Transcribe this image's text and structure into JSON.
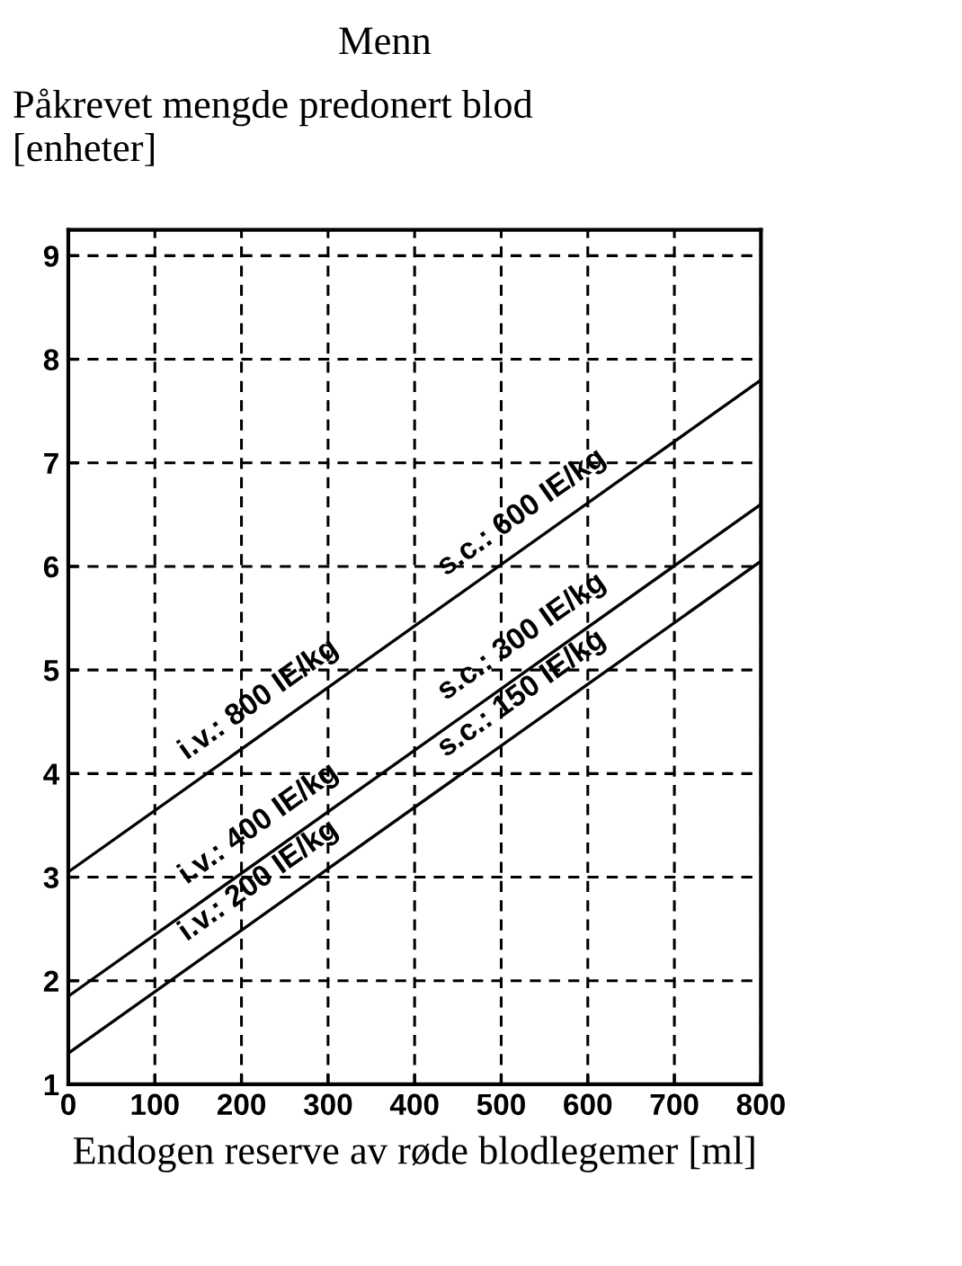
{
  "chart_data": {
    "type": "line",
    "title": "Menn",
    "ylabel": "Påkrevet mengde predonert blod [enheter]",
    "xlabel": "Endogen reserve av røde blodlegemer [ml]",
    "x": [
      0,
      800
    ],
    "series": [
      {
        "color": "#000000",
        "values": [
          3.05,
          7.8
        ]
      },
      {
        "color": "#000000",
        "values": [
          1.85,
          6.6
        ]
      },
      {
        "color": "#000000",
        "values": [
          1.3,
          6.05
        ]
      }
    ],
    "annotations": [
      "i.v.: 800 IE/kg",
      "s.c.: 600 IE/kg",
      "i.v.: 400 IE/kg",
      "s.c.: 300 IE/kg",
      "i.v.: 200 IE/kg",
      "s.c.: 150 IE/kg"
    ],
    "xlim": [
      0,
      800
    ],
    "xticks": [
      0,
      100,
      200,
      300,
      400,
      500,
      600,
      700,
      800
    ],
    "ylim": [
      1,
      9.25
    ],
    "yticks": [
      1,
      2,
      3,
      4,
      5,
      6,
      7,
      8,
      9
    ],
    "grid": true,
    "line_style": "solid",
    "marker": "none",
    "legend": false
  }
}
